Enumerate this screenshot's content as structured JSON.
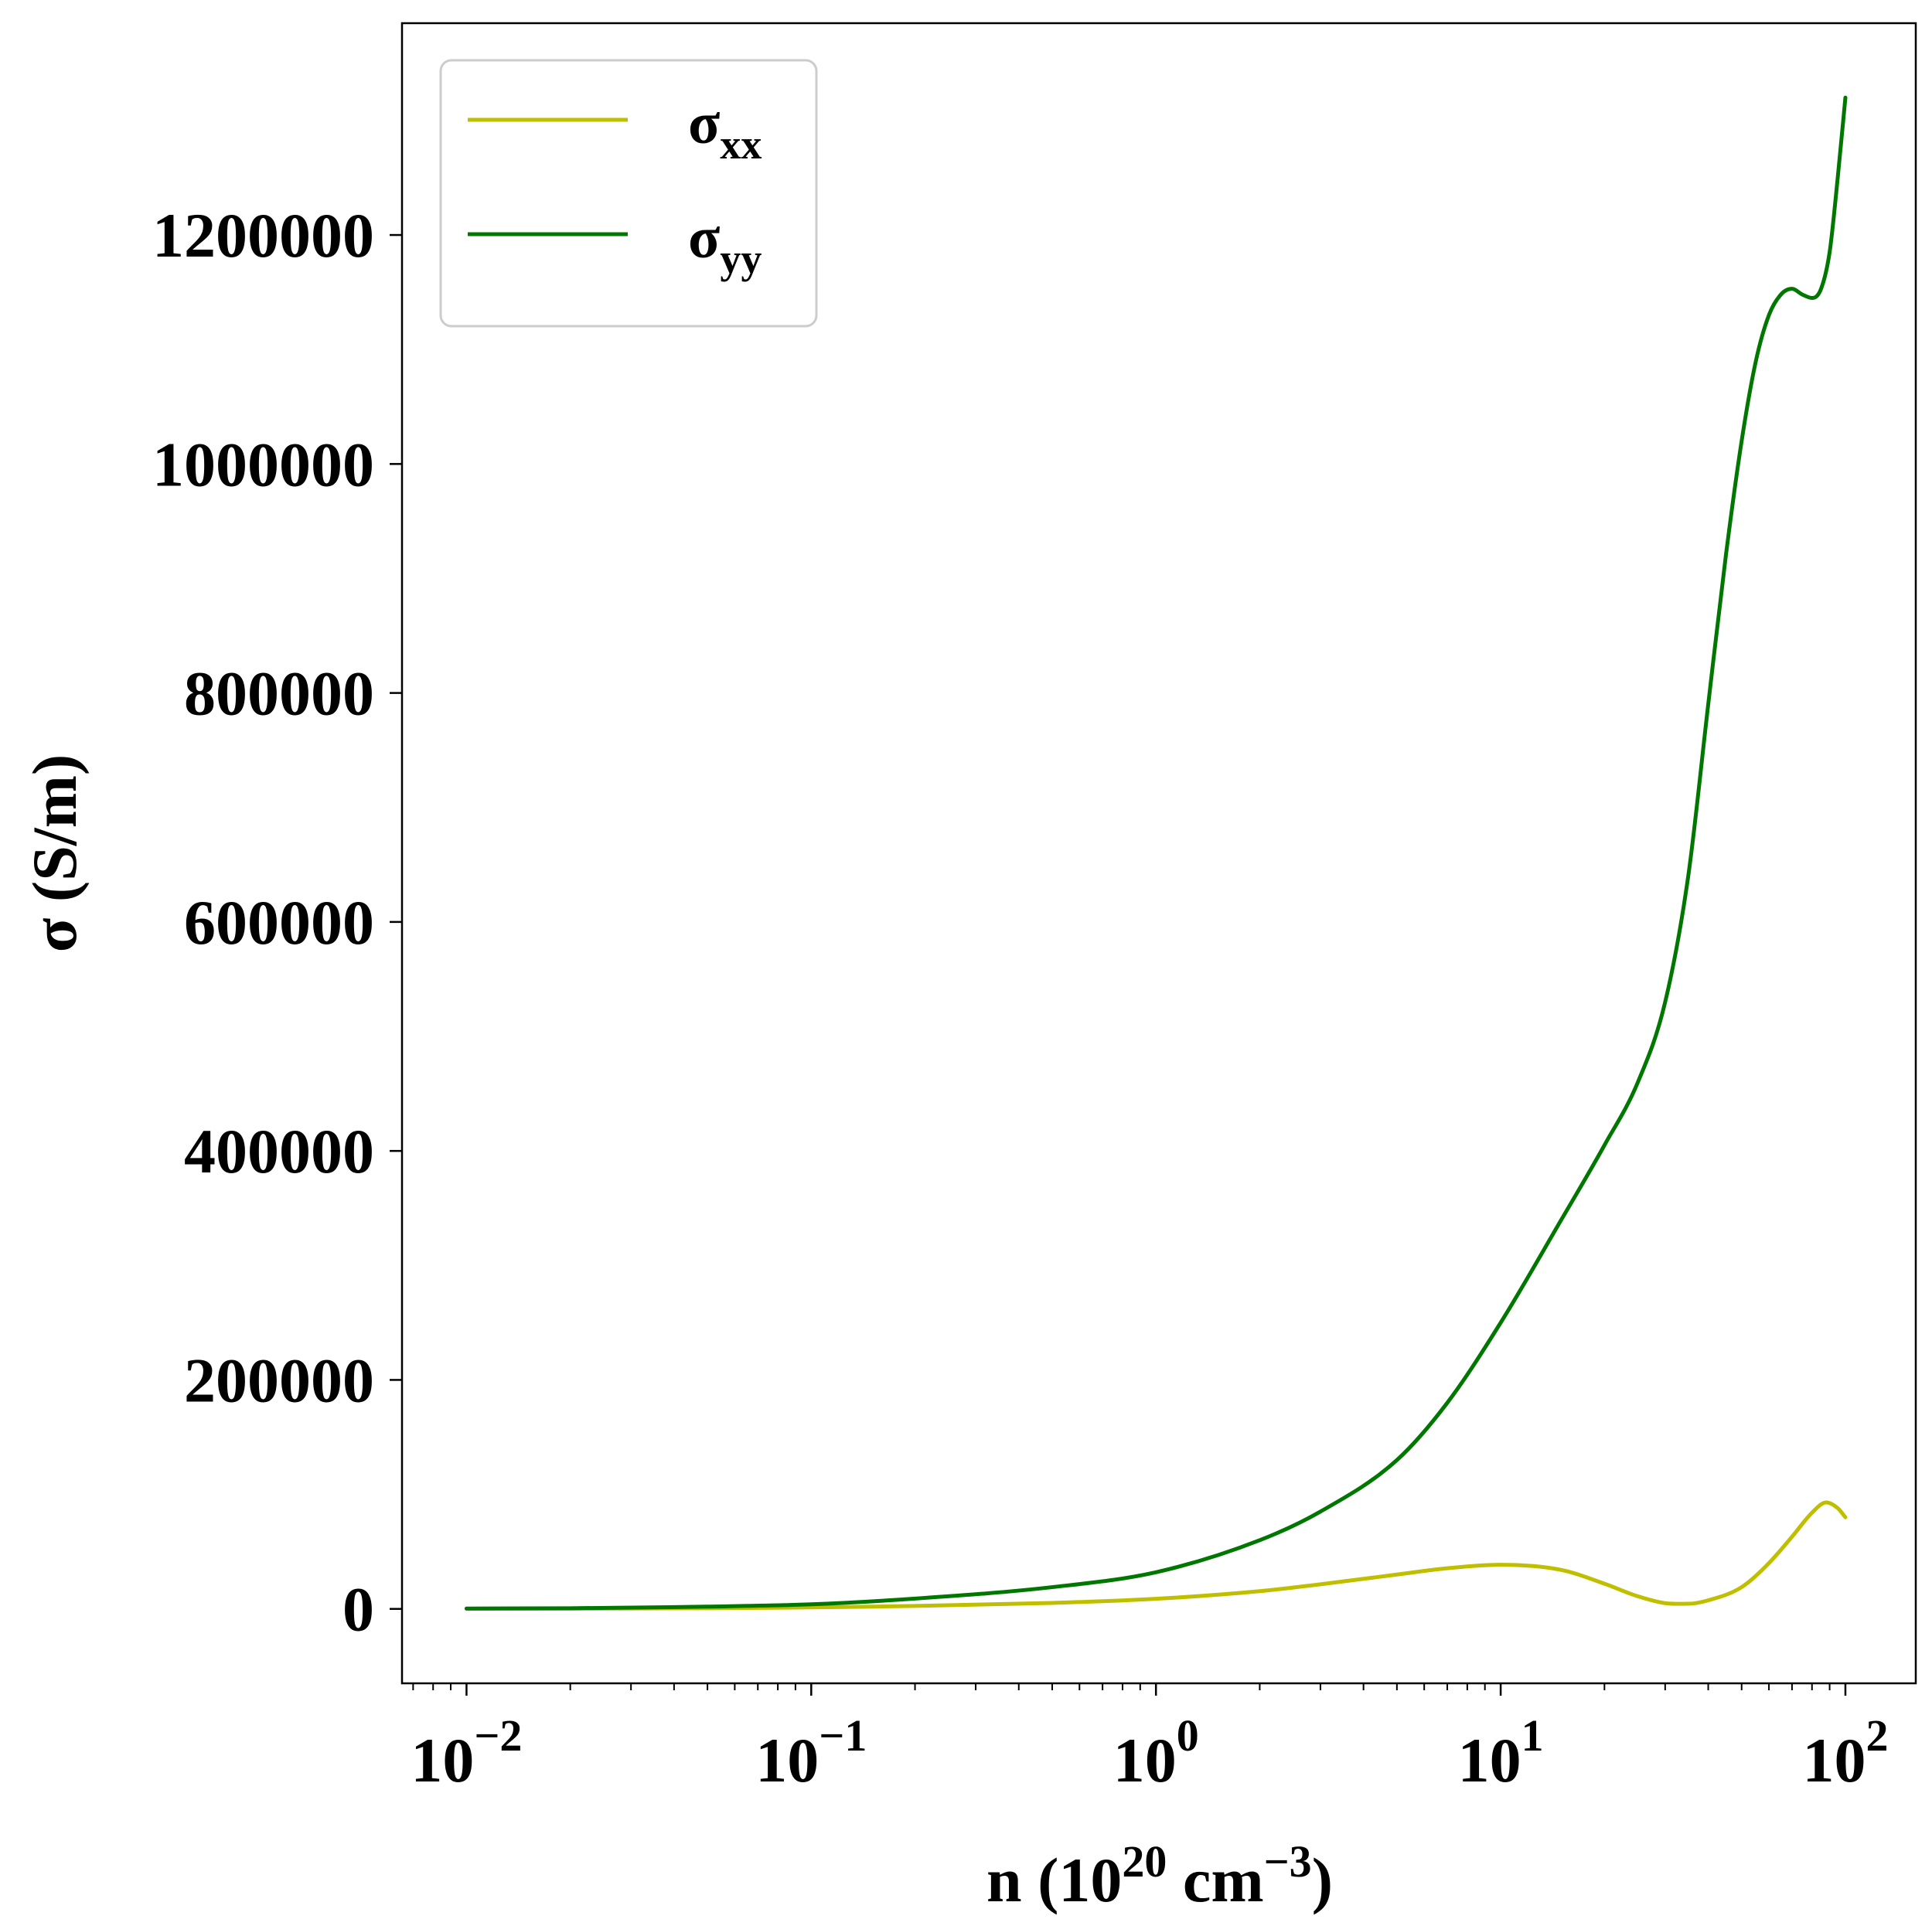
{
  "chart_data": {
    "type": "line",
    "x_scale": "log",
    "xlim": [
      0.0065,
      160
    ],
    "ylim": [
      -65000,
      1385000
    ],
    "x_ticks": [
      {
        "value": 0.01,
        "base": "10",
        "exp": "−2"
      },
      {
        "value": 0.1,
        "base": "10",
        "exp": "−1"
      },
      {
        "value": 1,
        "base": "10",
        "exp": "0"
      },
      {
        "value": 10,
        "base": "10",
        "exp": "1"
      },
      {
        "value": 100,
        "base": "10",
        "exp": "2"
      }
    ],
    "y_ticks": [
      {
        "value": 0,
        "label": "0"
      },
      {
        "value": 200000,
        "label": "200000"
      },
      {
        "value": 400000,
        "label": "400000"
      },
      {
        "value": 600000,
        "label": "600000"
      },
      {
        "value": 800000,
        "label": "800000"
      },
      {
        "value": 1000000,
        "label": "1000000"
      },
      {
        "value": 1200000,
        "label": "1200000"
      }
    ],
    "xlabel": {
      "main": "n (10",
      "sup1": "20",
      "mid": " cm",
      "sup2": "−3",
      "end": ")"
    },
    "ylabel": "σ (S/m)",
    "legend_position": "upper-left",
    "grid": false,
    "series": [
      {
        "name": "σ",
        "subscript": "xx",
        "color": "#bfbf00",
        "points": [
          [
            0.01,
            100
          ],
          [
            0.02,
            220
          ],
          [
            0.05,
            600
          ],
          [
            0.1,
            1300
          ],
          [
            0.2,
            2600
          ],
          [
            0.5,
            5200
          ],
          [
            1,
            8800
          ],
          [
            2,
            15500
          ],
          [
            3,
            21500
          ],
          [
            5,
            30000
          ],
          [
            7,
            35500
          ],
          [
            10,
            38500
          ],
          [
            15,
            34000
          ],
          [
            20,
            22000
          ],
          [
            25,
            11000
          ],
          [
            30,
            5000
          ],
          [
            35,
            4500
          ],
          [
            40,
            7500
          ],
          [
            50,
            19000
          ],
          [
            60,
            40000
          ],
          [
            70,
            63000
          ],
          [
            80,
            84000
          ],
          [
            88,
            93000
          ],
          [
            95,
            88000
          ],
          [
            100,
            80000
          ]
        ]
      },
      {
        "name": "σ",
        "subscript": "yy",
        "color": "#007700",
        "points": [
          [
            0.01,
            300
          ],
          [
            0.02,
            600
          ],
          [
            0.05,
            2000
          ],
          [
            0.1,
            4000
          ],
          [
            0.2,
            9000
          ],
          [
            0.5,
            19000
          ],
          [
            1,
            32000
          ],
          [
            2,
            60000
          ],
          [
            3,
            85000
          ],
          [
            5,
            130000
          ],
          [
            7,
            180000
          ],
          [
            10,
            250000
          ],
          [
            15,
            340000
          ],
          [
            20,
            405000
          ],
          [
            25,
            460000
          ],
          [
            30,
            530000
          ],
          [
            35,
            640000
          ],
          [
            40,
            790000
          ],
          [
            45,
            920000
          ],
          [
            50,
            1020000
          ],
          [
            55,
            1090000
          ],
          [
            60,
            1130000
          ],
          [
            65,
            1148000
          ],
          [
            70,
            1153000
          ],
          [
            75,
            1148000
          ],
          [
            80,
            1145000
          ],
          [
            85,
            1153000
          ],
          [
            90,
            1185000
          ],
          [
            95,
            1250000
          ],
          [
            100,
            1320000
          ]
        ]
      }
    ]
  }
}
